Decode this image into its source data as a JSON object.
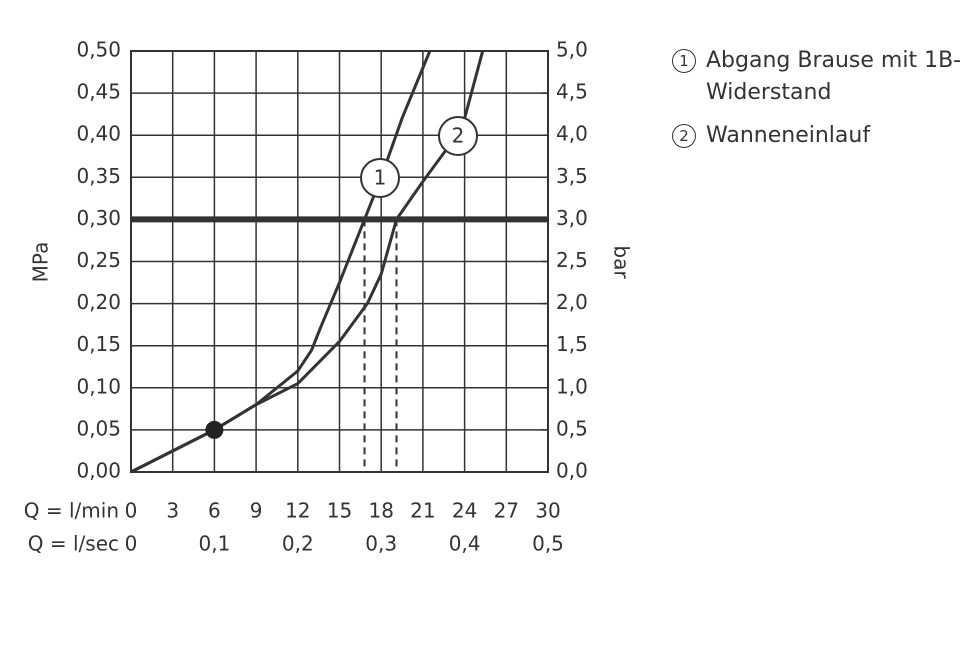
{
  "chart_data": {
    "type": "line",
    "xlabel": "Q = l/min",
    "x2label": "Q = l/sec",
    "ylabel": "MPa",
    "y2label": "bar",
    "xlim": [
      0,
      30
    ],
    "xticks": [
      0,
      3,
      6,
      9,
      12,
      15,
      18,
      21,
      24,
      27,
      30
    ],
    "x2lim": [
      0,
      0.5
    ],
    "x2ticks": [
      {
        "value": 0,
        "label": "0"
      },
      {
        "value": 0.1,
        "label": "0,1"
      },
      {
        "value": 0.2,
        "label": "0,2"
      },
      {
        "value": 0.3,
        "label": "0,3"
      },
      {
        "value": 0.4,
        "label": "0,4"
      },
      {
        "value": 0.5,
        "label": "0,5"
      }
    ],
    "ylim": [
      0,
      0.5
    ],
    "yticks": [
      {
        "value": 0,
        "label": "0,00"
      },
      {
        "value": 0.05,
        "label": "0,05"
      },
      {
        "value": 0.1,
        "label": "0,10"
      },
      {
        "value": 0.15,
        "label": "0,15"
      },
      {
        "value": 0.2,
        "label": "0,20"
      },
      {
        "value": 0.25,
        "label": "0,25"
      },
      {
        "value": 0.3,
        "label": "0,30"
      },
      {
        "value": 0.35,
        "label": "0,35"
      },
      {
        "value": 0.4,
        "label": "0,40"
      },
      {
        "value": 0.45,
        "label": "0,45"
      },
      {
        "value": 0.5,
        "label": "0,50"
      }
    ],
    "y2lim": [
      0,
      5
    ],
    "y2ticks": [
      {
        "value": 0,
        "label": "0,0"
      },
      {
        "value": 0.5,
        "label": "0,5"
      },
      {
        "value": 1,
        "label": "1,0"
      },
      {
        "value": 1.5,
        "label": "1,5"
      },
      {
        "value": 2,
        "label": "2,0"
      },
      {
        "value": 2.5,
        "label": "2,5"
      },
      {
        "value": 3,
        "label": "3,0"
      },
      {
        "value": 3.5,
        "label": "3,5"
      },
      {
        "value": 4,
        "label": "4,0"
      },
      {
        "value": 4.5,
        "label": "4,5"
      },
      {
        "value": 5,
        "label": "5,0"
      }
    ],
    "grid": true,
    "hline": 0.3,
    "crossings": [
      16.8,
      19.1
    ],
    "point": [
      6,
      0.05
    ],
    "series": [
      {
        "name": "Abgang Brause mit 1B-Widerstand",
        "label": "1",
        "color": "#333333",
        "x": [
          0,
          6,
          9,
          12,
          13,
          13.6,
          15,
          16.8,
          18,
          19.5,
          21.5
        ],
        "values": [
          0,
          0.05,
          0.08,
          0.12,
          0.145,
          0.17,
          0.225,
          0.3,
          0.35,
          0.42,
          0.5
        ]
      },
      {
        "name": "Wanneneinlauf",
        "label": "2",
        "color": "#333333",
        "x": [
          0,
          6,
          9,
          12,
          15,
          17,
          18,
          19.1,
          21,
          23,
          24,
          25.3
        ],
        "values": [
          0,
          0.05,
          0.08,
          0.105,
          0.155,
          0.2,
          0.235,
          0.3,
          0.345,
          0.39,
          0.42,
          0.5
        ]
      }
    ]
  }
}
